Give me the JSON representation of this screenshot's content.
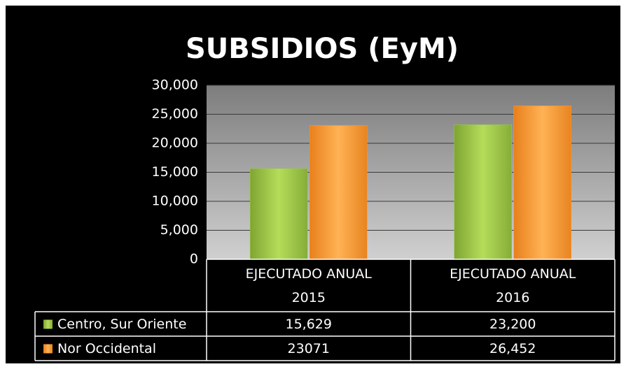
{
  "chart_data": {
    "type": "bar",
    "title": "SUBSIDIOS (EyM)",
    "categories": [
      "EJECUTADO ANUAL 2015",
      "EJECUTADO ANUAL 2016"
    ],
    "series": [
      {
        "name": "Centro, Sur Oriente",
        "color": "#9bc848",
        "values": [
          15629,
          23200
        ],
        "value_labels": [
          "15,629",
          "23,200"
        ]
      },
      {
        "name": "Nor Occidental",
        "color": "#f79a38",
        "values": [
          23071,
          26452
        ],
        "value_labels": [
          "23071",
          "26,452"
        ]
      }
    ],
    "ylim": [
      0,
      30000
    ],
    "yticks": [
      0,
      {
        "value": 5000,
        "label": "5,000"
      },
      {
        "value": 10000,
        "label": "10,000"
      },
      {
        "value": 15000,
        "label": "15,000"
      },
      {
        "value": 20000,
        "label": "20,000"
      },
      {
        "value": 25000,
        "label": "25,000"
      },
      {
        "value": 30000,
        "label": "30,000"
      }
    ],
    "grid": true,
    "legend": "data-table"
  }
}
